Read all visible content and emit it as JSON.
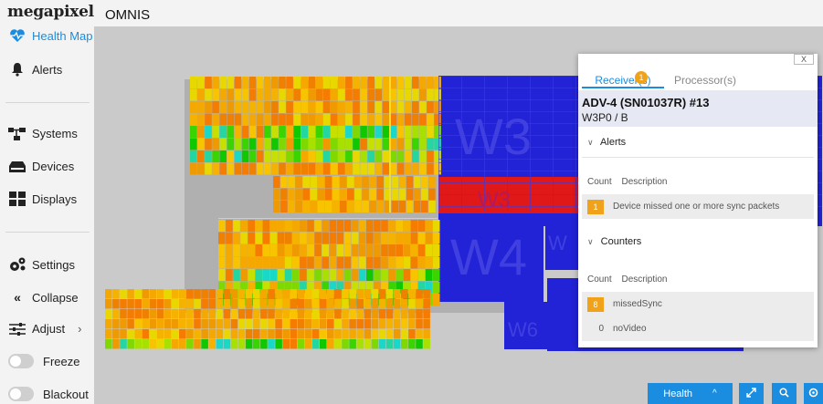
{
  "header": {
    "logo": "megapixel",
    "app_title": "OMNIS"
  },
  "sidebar": {
    "items": [
      {
        "label": "Health Map",
        "icon": "heart-pulse-icon",
        "active": true
      },
      {
        "label": "Alerts",
        "icon": "bell-icon"
      },
      {
        "label": "Systems",
        "icon": "network-icon"
      },
      {
        "label": "Devices",
        "icon": "device-icon"
      },
      {
        "label": "Displays",
        "icon": "grid-icon"
      },
      {
        "label": "Settings",
        "icon": "gears-icon"
      },
      {
        "label": "Collapse",
        "icon": "double-chevron-left-icon"
      },
      {
        "label": "Adjust",
        "icon": "sliders-icon",
        "chevron": "›"
      },
      {
        "label": "Freeze",
        "icon": "toggle",
        "value": false
      },
      {
        "label": "Blackout",
        "icon": "toggle",
        "value": false
      }
    ]
  },
  "wall": {
    "labels": [
      "W3",
      "W3",
      "W4",
      "W6",
      "W",
      "W2"
    ],
    "colors": {
      "background": "#cacaca",
      "blue_block": "#2222d6",
      "red_block": "#e01818",
      "selection": "#f2dc28"
    }
  },
  "panel": {
    "close_label": "X",
    "tabs": [
      {
        "label": "Receiver(s)",
        "badge": "1",
        "active": true
      },
      {
        "label": "Processor(s)",
        "active": false
      }
    ],
    "device_name": "ADV-4 (SN01037R) #13",
    "device_sub": "W3P0 / B",
    "alerts": {
      "title": "Alerts",
      "col_count": "Count",
      "col_description": "Description",
      "rows": [
        {
          "count": "1",
          "description": "Device missed one or more sync packets"
        }
      ]
    },
    "counters": {
      "title": "Counters",
      "col_count": "Count",
      "col_description": "Description",
      "rows": [
        {
          "count": "8",
          "description": "missedSync",
          "highlight": true
        },
        {
          "count": "0",
          "description": "noVideo",
          "highlight": false
        }
      ]
    }
  },
  "bottom": {
    "health_label": "Health",
    "health_chevron": "^"
  },
  "colors": {
    "accent": "#1a8de0",
    "badge": "#f0a21b"
  }
}
